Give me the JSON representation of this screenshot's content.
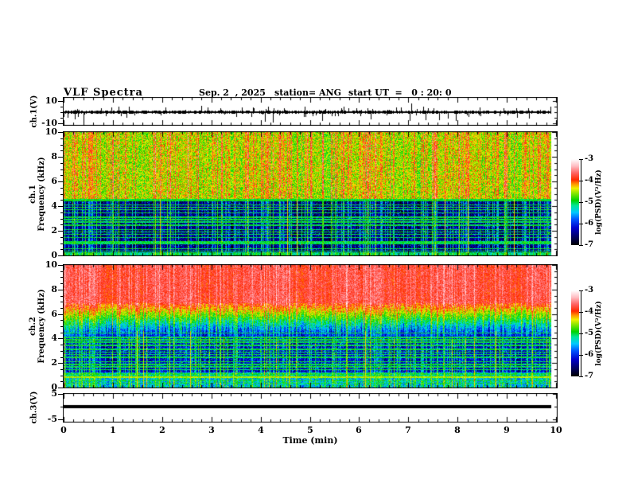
{
  "header": {
    "title": "VLF Spectra",
    "date": "Sep. 2  , 2025",
    "station": "station= ANG",
    "start_ut": "start UT  =   0 : 20: 0"
  },
  "xaxis": {
    "label": "Time (min)",
    "range_min": [
      0,
      10
    ],
    "major_ticks": [
      0,
      1,
      2,
      3,
      4,
      5,
      6,
      7,
      8,
      9,
      10
    ],
    "minor_tick_step_min": 0.2,
    "data_end_min": 9.9
  },
  "colorbar": {
    "label": "log(PSD)(V²/Hz)",
    "ticks": [
      -3,
      -4,
      -5,
      -6,
      -7
    ],
    "range": [
      -7,
      -3
    ],
    "stops": [
      {
        "p": 0.0,
        "c": "#000000"
      },
      {
        "p": 0.1,
        "c": "#000066"
      },
      {
        "p": 0.2,
        "c": "#0000cd"
      },
      {
        "p": 0.3,
        "c": "#0055ff"
      },
      {
        "p": 0.38,
        "c": "#00c8ff"
      },
      {
        "p": 0.46,
        "c": "#00e696"
      },
      {
        "p": 0.52,
        "c": "#00d200"
      },
      {
        "p": 0.6,
        "c": "#82e600"
      },
      {
        "p": 0.66,
        "c": "#f0f000"
      },
      {
        "p": 0.71,
        "c": "#ff9600"
      },
      {
        "p": 0.76,
        "c": "#ff2800"
      },
      {
        "p": 0.84,
        "c": "#ff6464"
      },
      {
        "p": 0.92,
        "c": "#ffbec3"
      },
      {
        "p": 1.0,
        "c": "#ffffff"
      }
    ]
  },
  "chart_data": [
    {
      "type": "line",
      "panel": "ch1-waveform",
      "ylabel": "ch.1(V)",
      "ylim": [
        -10,
        10
      ],
      "ytick_labels": [
        10,
        -10
      ],
      "signal": {
        "description": "broadband noise centered on 0 V, ~±2 V envelope with frequent impulsive spikes, a few reaching ±9 V",
        "baseline_v": 0,
        "envelope_v": 1.8,
        "med_spike_prob": 0.08,
        "med_spike_v": 4,
        "up_spike_prob": 0.02,
        "down_spike_prob": 0.028,
        "deep_spike_prob": 0.004,
        "max_spike_v": 9.5,
        "color": "#000000",
        "seed": 7
      }
    },
    {
      "type": "heatmap",
      "panel": "ch1-spectrogram",
      "ylabel_channel": "ch.1",
      "ylabel_axis": "Frequency (kHz)",
      "ylim_khz": [
        0,
        10
      ],
      "ytick_labels": [
        0,
        2,
        4,
        6,
        8,
        10
      ],
      "minor_ytick_step_khz": 0.5,
      "seed": 101,
      "bands": [
        {
          "f_lo": 4.55,
          "f_hi": 10.01,
          "base": -4.55,
          "noise": 0.85,
          "streak_gain": 0.7
        },
        {
          "f_lo": 0.28,
          "f_hi": 4.55,
          "base": -6.6,
          "noise": 0.75,
          "streak_gain": 1.45,
          "speckle_prob": 0.05,
          "speckle_boost": 1.3
        },
        {
          "f_lo": 0.0,
          "f_hi": 0.28,
          "base": -5.15,
          "noise": 0.5,
          "streak_gain": 0.5
        }
      ],
      "edge_line": {
        "f_lo": 4.38,
        "f_hi": 4.58,
        "level": -5.0
      },
      "horizontal_lines_khz": [
        0.35,
        0.55,
        0.95,
        1.1,
        1.45,
        1.7,
        1.9,
        2.1,
        2.45,
        2.7,
        2.9,
        3.1,
        3.45,
        3.7,
        3.9,
        4.1,
        4.45
      ],
      "line_level": -5.05,
      "streaks": {
        "none_prob": 0.5,
        "strong_prob": 0.05,
        "hot_prob": 0.012
      }
    },
    {
      "type": "heatmap",
      "panel": "ch2-spectrogram",
      "ylabel_channel": "ch.2",
      "ylabel_axis": "Frequency (kHz)",
      "ylim_khz": [
        0,
        10
      ],
      "ytick_labels": [
        0,
        2,
        4,
        6,
        8,
        10
      ],
      "minor_ytick_step_khz": 0.5,
      "seed": 202,
      "bands": [
        {
          "f_lo": 6.9,
          "f_hi": 10.01,
          "base": -3.8,
          "noise": 0.5,
          "streak_gain": 0.3
        },
        {
          "f_lo": 4.1,
          "f_hi": 6.9,
          "gradient": true,
          "base_lo": -6.2,
          "base_hi": -3.9,
          "jitter_khz": 1.3,
          "noise": 0.7,
          "streak_gain": 0.6
        },
        {
          "f_lo": 1.25,
          "f_hi": 4.1,
          "base": -6.3,
          "noise": 0.8,
          "streak_gain": 1.35,
          "speckle_prob": 0.06,
          "speckle_boost": 1.2
        },
        {
          "f_lo": 0.0,
          "f_hi": 1.25,
          "base": -5.45,
          "noise": 0.9,
          "streak_gain": 0.8
        }
      ],
      "horizontal_lines_khz": [
        0.35,
        0.55,
        0.95,
        1.1,
        1.45,
        1.7,
        1.9,
        2.1,
        2.45,
        2.7,
        2.9,
        3.1,
        3.45,
        3.7,
        3.9,
        4.1,
        4.45
      ],
      "line_level": -5.05,
      "warm_lines": [
        {
          "f": 0.85,
          "level": -4.5
        }
      ],
      "streaks": {
        "none_prob": 0.5,
        "strong_prob": 0.05,
        "hot_prob": 0.012
      }
    },
    {
      "type": "line",
      "panel": "ch3-waveform",
      "ylabel": "ch.3(V)",
      "ylim": [
        -5,
        5
      ],
      "ytick_labels": [
        5,
        -5
      ],
      "signal": {
        "description": "constant 0 V flat line for full record",
        "baseline_v": 0,
        "flat": true,
        "color": "#000000",
        "seed": 3
      }
    }
  ]
}
